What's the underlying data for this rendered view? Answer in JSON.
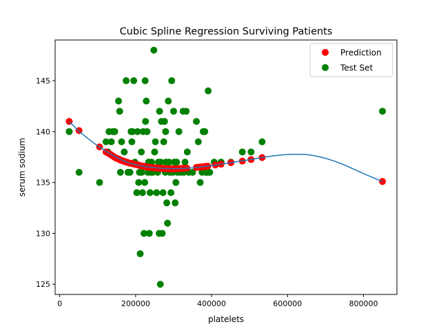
{
  "chart_data": {
    "type": "scatter",
    "title": "Cubic Spline Regression Surviving Patients",
    "xlabel": "platelets",
    "ylabel": "serum sodium",
    "xlim": [
      -12000,
      888000
    ],
    "ylim": [
      124,
      149
    ],
    "xticks": [
      0,
      200000,
      400000,
      600000,
      800000
    ],
    "yticks": [
      125,
      130,
      135,
      140,
      145
    ],
    "grid": false,
    "legend_position": "top-right",
    "colors": {
      "prediction": "#ff0000",
      "test": "#008000",
      "curve": "#1f77b4"
    },
    "series": [
      {
        "name": "Prediction",
        "kind": "scatter",
        "points": [
          [
            25100,
            141.0
          ],
          [
            51000,
            140.1
          ],
          [
            105000,
            138.5
          ],
          [
            122000,
            138.0
          ],
          [
            127000,
            137.9
          ],
          [
            132000,
            137.8
          ],
          [
            136000,
            137.7
          ],
          [
            140000,
            137.6
          ],
          [
            144000,
            137.5
          ],
          [
            148000,
            137.4
          ],
          [
            152000,
            137.35
          ],
          [
            156000,
            137.3
          ],
          [
            160000,
            137.2
          ],
          [
            164000,
            137.15
          ],
          [
            168000,
            137.1
          ],
          [
            172000,
            137.05
          ],
          [
            176000,
            137.0
          ],
          [
            180000,
            136.95
          ],
          [
            184000,
            136.9
          ],
          [
            188000,
            136.88
          ],
          [
            192000,
            136.85
          ],
          [
            196000,
            136.8
          ],
          [
            200000,
            136.78
          ],
          [
            204000,
            136.74
          ],
          [
            208000,
            136.7
          ],
          [
            212000,
            136.66
          ],
          [
            216000,
            136.62
          ],
          [
            220000,
            136.6
          ],
          [
            224000,
            136.57
          ],
          [
            228000,
            136.54
          ],
          [
            232000,
            136.52
          ],
          [
            236000,
            136.5
          ],
          [
            240000,
            136.48
          ],
          [
            244000,
            136.46
          ],
          [
            248000,
            136.45
          ],
          [
            252000,
            136.43
          ],
          [
            256000,
            136.42
          ],
          [
            260000,
            136.41
          ],
          [
            264000,
            136.4
          ],
          [
            268000,
            136.39
          ],
          [
            272000,
            136.38
          ],
          [
            276000,
            136.37
          ],
          [
            280000,
            136.36
          ],
          [
            284000,
            136.36
          ],
          [
            288000,
            136.35
          ],
          [
            292000,
            136.35
          ],
          [
            296000,
            136.35
          ],
          [
            300000,
            136.35
          ],
          [
            305000,
            136.35
          ],
          [
            310000,
            136.36
          ],
          [
            315000,
            136.37
          ],
          [
            320000,
            136.38
          ],
          [
            325000,
            136.39
          ],
          [
            330000,
            136.4
          ],
          [
            335000,
            136.41
          ],
          [
            360000,
            136.48
          ],
          [
            365000,
            136.5
          ],
          [
            370000,
            136.52
          ],
          [
            375000,
            136.54
          ],
          [
            380000,
            136.56
          ],
          [
            385000,
            136.58
          ],
          [
            390000,
            136.6
          ],
          [
            410000,
            136.72
          ],
          [
            425000,
            136.8
          ],
          [
            451000,
            136.95
          ],
          [
            481000,
            137.1
          ],
          [
            504000,
            137.25
          ],
          [
            533000,
            137.45
          ],
          [
            850000,
            135.1
          ]
        ]
      },
      {
        "name": "Test Set",
        "kind": "scatter",
        "points": [
          [
            25100,
            140
          ],
          [
            51000,
            136
          ],
          [
            105000,
            135
          ],
          [
            122000,
            139
          ],
          [
            127000,
            138
          ],
          [
            130000,
            140
          ],
          [
            136000,
            139
          ],
          [
            140000,
            140
          ],
          [
            145000,
            140
          ],
          [
            155000,
            143
          ],
          [
            158000,
            142
          ],
          [
            160000,
            136
          ],
          [
            163000,
            139
          ],
          [
            170000,
            138
          ],
          [
            175000,
            145
          ],
          [
            180000,
            136
          ],
          [
            185000,
            136
          ],
          [
            188000,
            140
          ],
          [
            190000,
            139
          ],
          [
            192000,
            140
          ],
          [
            195000,
            145
          ],
          [
            198000,
            137
          ],
          [
            203000,
            134
          ],
          [
            205000,
            140
          ],
          [
            208000,
            135
          ],
          [
            210000,
            136
          ],
          [
            212000,
            128
          ],
          [
            215000,
            138
          ],
          [
            216000,
            136
          ],
          [
            218000,
            134
          ],
          [
            220000,
            140
          ],
          [
            222000,
            130
          ],
          [
            224000,
            135
          ],
          [
            225000,
            145
          ],
          [
            226000,
            141
          ],
          [
            228000,
            143
          ],
          [
            230000,
            140
          ],
          [
            232000,
            136
          ],
          [
            234000,
            137
          ],
          [
            236000,
            130
          ],
          [
            238000,
            134
          ],
          [
            240000,
            136
          ],
          [
            242000,
            137
          ],
          [
            245000,
            136
          ],
          [
            248000,
            148
          ],
          [
            250000,
            138
          ],
          [
            252000,
            139
          ],
          [
            255000,
            134
          ],
          [
            258000,
            136
          ],
          [
            260000,
            137
          ],
          [
            262000,
            130
          ],
          [
            263000,
            142
          ],
          [
            265000,
            125
          ],
          [
            266000,
            137
          ],
          [
            268000,
            141
          ],
          [
            270000,
            130
          ],
          [
            272000,
            134
          ],
          [
            274000,
            139
          ],
          [
            276000,
            141
          ],
          [
            278000,
            136
          ],
          [
            279000,
            140
          ],
          [
            280000,
            137
          ],
          [
            282000,
            133
          ],
          [
            284000,
            131
          ],
          [
            286000,
            143
          ],
          [
            288000,
            137
          ],
          [
            290000,
            136
          ],
          [
            293000,
            134
          ],
          [
            295000,
            145
          ],
          [
            298000,
            136
          ],
          [
            300000,
            142
          ],
          [
            302000,
            137
          ],
          [
            304000,
            133
          ],
          [
            306000,
            135
          ],
          [
            308000,
            137
          ],
          [
            310000,
            136
          ],
          [
            314000,
            140
          ],
          [
            319000,
            136
          ],
          [
            325000,
            142
          ],
          [
            327000,
            136
          ],
          [
            330000,
            137
          ],
          [
            333000,
            142
          ],
          [
            336000,
            138
          ],
          [
            340000,
            136
          ],
          [
            350000,
            136
          ],
          [
            360000,
            141
          ],
          [
            365000,
            139
          ],
          [
            370000,
            135
          ],
          [
            375000,
            136
          ],
          [
            378000,
            140
          ],
          [
            382000,
            140
          ],
          [
            385000,
            136
          ],
          [
            388000,
            136
          ],
          [
            391000,
            144
          ],
          [
            395000,
            136
          ],
          [
            407000,
            137
          ],
          [
            425000,
            137
          ],
          [
            451000,
            137
          ],
          [
            481000,
            138
          ],
          [
            504000,
            138
          ],
          [
            533000,
            139
          ],
          [
            850000,
            142
          ]
        ]
      },
      {
        "name": "",
        "kind": "line",
        "points": [
          [
            25100,
            141.0
          ],
          [
            50000,
            140.05
          ],
          [
            75000,
            139.3
          ],
          [
            100000,
            138.6
          ],
          [
            125000,
            138.0
          ],
          [
            150000,
            137.45
          ],
          [
            175000,
            137.02
          ],
          [
            200000,
            136.75
          ],
          [
            225000,
            136.57
          ],
          [
            250000,
            136.45
          ],
          [
            275000,
            136.38
          ],
          [
            300000,
            136.36
          ],
          [
            325000,
            136.38
          ],
          [
            350000,
            136.44
          ],
          [
            375000,
            136.53
          ],
          [
            400000,
            136.66
          ],
          [
            425000,
            136.8
          ],
          [
            450000,
            136.95
          ],
          [
            475000,
            137.1
          ],
          [
            500000,
            137.24
          ],
          [
            525000,
            137.4
          ],
          [
            550000,
            137.55
          ],
          [
            575000,
            137.67
          ],
          [
            600000,
            137.75
          ],
          [
            625000,
            137.78
          ],
          [
            650000,
            137.75
          ],
          [
            675000,
            137.6
          ],
          [
            700000,
            137.38
          ],
          [
            725000,
            137.08
          ],
          [
            750000,
            136.72
          ],
          [
            775000,
            136.3
          ],
          [
            800000,
            135.88
          ],
          [
            825000,
            135.48
          ],
          [
            850000,
            135.1
          ]
        ]
      }
    ]
  }
}
